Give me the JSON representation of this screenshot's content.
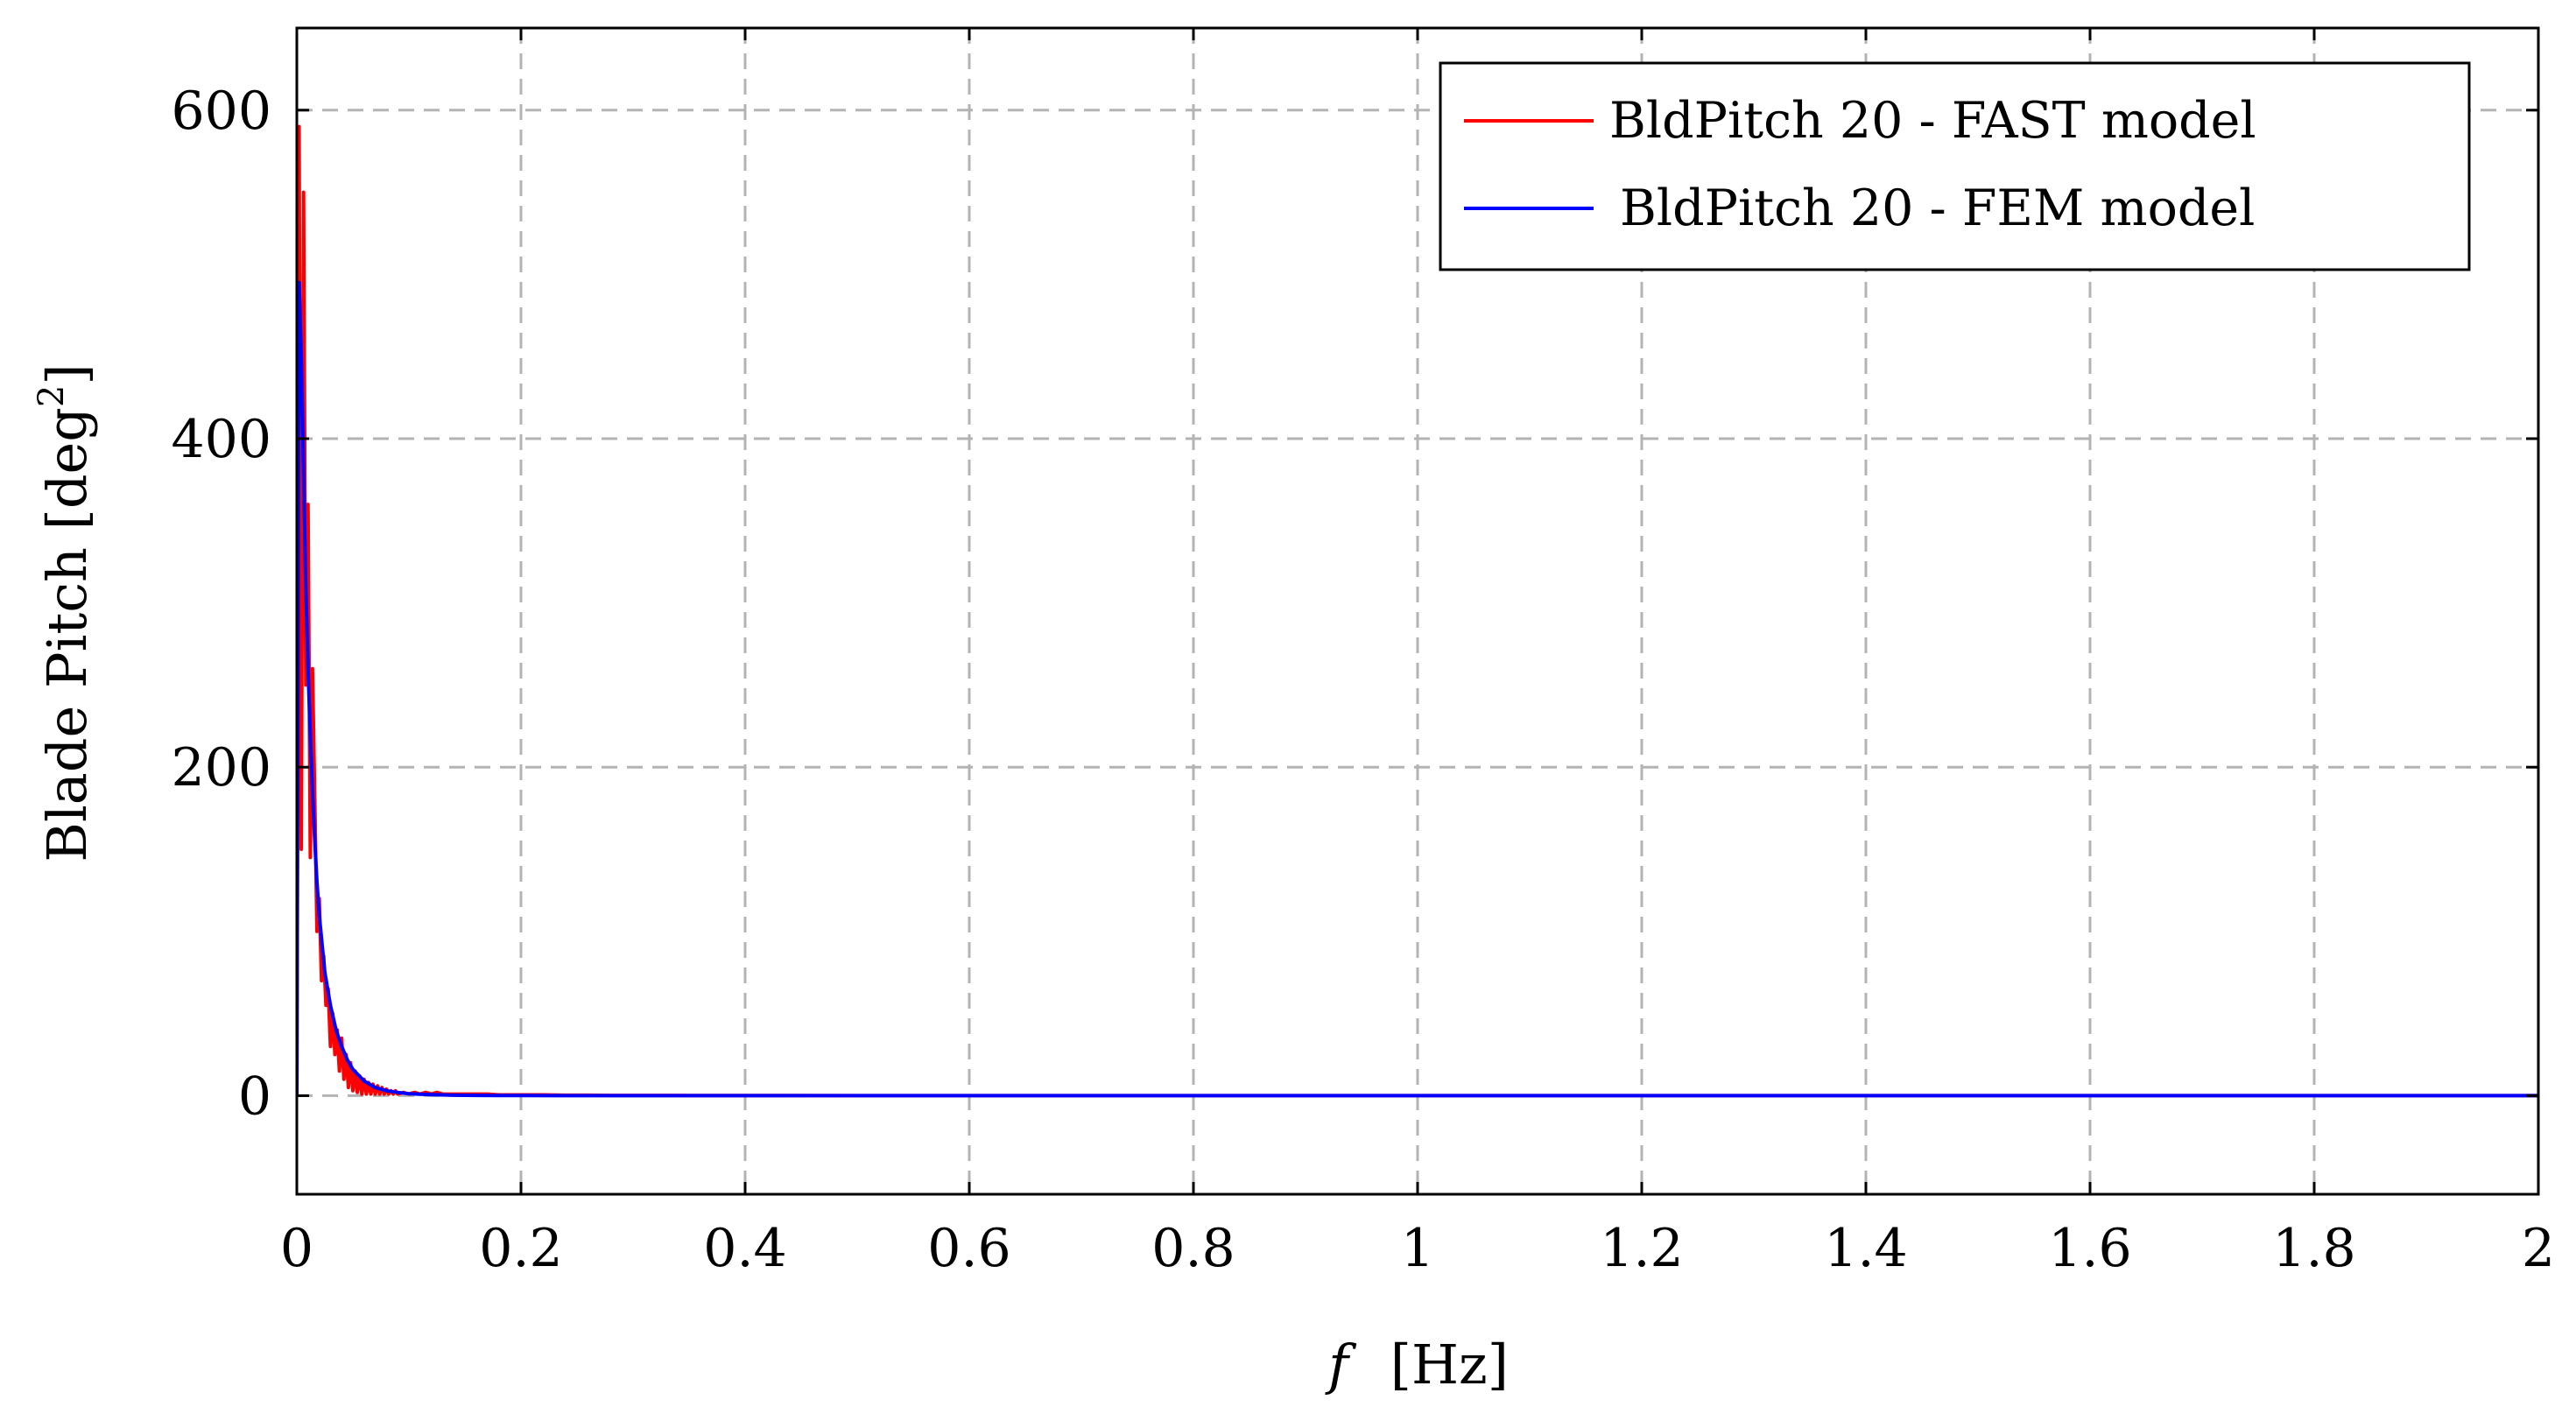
{
  "chart_data": {
    "type": "line",
    "title": "",
    "xlabel": "f [Hz]",
    "xlabel_var": "f",
    "xlabel_unit": "[Hz]",
    "ylabel": "Blade Pitch [deg²]",
    "ylabel_text": "Blade Pitch [deg",
    "ylabel_sup": "2",
    "ylabel_close": "]",
    "xlim": [
      0,
      2
    ],
    "ylim": [
      -60,
      650
    ],
    "xticks": [
      0,
      0.2,
      0.4,
      0.6,
      0.8,
      1,
      1.2,
      1.4,
      1.6,
      1.8,
      2
    ],
    "xtick_labels": [
      "0",
      "0.2",
      "0.4",
      "0.6",
      "0.8",
      "1",
      "1.2",
      "1.4",
      "1.6",
      "1.8",
      "2"
    ],
    "yticks": [
      0,
      200,
      400,
      600
    ],
    "ytick_labels": [
      "0",
      "200",
      "400",
      "600"
    ],
    "grid": true,
    "grid_style": "dashed",
    "legend_position": "top-right",
    "series": [
      {
        "name": "BldPitch 20 - FAST model",
        "color": "#ff0000",
        "x": [
          0,
          0.002,
          0.004,
          0.006,
          0.008,
          0.01,
          0.012,
          0.014,
          0.016,
          0.018,
          0.02,
          0.022,
          0.024,
          0.026,
          0.028,
          0.03,
          0.032,
          0.034,
          0.036,
          0.038,
          0.04,
          0.042,
          0.044,
          0.046,
          0.048,
          0.05,
          0.052,
          0.054,
          0.056,
          0.058,
          0.06,
          0.062,
          0.064,
          0.066,
          0.068,
          0.07,
          0.072,
          0.074,
          0.076,
          0.078,
          0.08,
          0.082,
          0.084,
          0.086,
          0.088,
          0.09,
          0.095,
          0.1,
          0.105,
          0.11,
          0.115,
          0.12,
          0.125,
          0.13,
          0.135,
          0.14,
          0.15,
          0.16,
          0.17,
          0.18,
          0.19,
          0.2,
          0.22,
          0.24,
          0.26,
          0.28,
          0.3,
          0.35,
          0.4,
          0.5,
          0.6,
          0.8,
          1.0,
          1.2,
          1.4,
          1.6,
          1.8,
          2.0
        ],
        "values": [
          0,
          590,
          150,
          550,
          250,
          360,
          145,
          260,
          180,
          100,
          120,
          70,
          85,
          55,
          65,
          30,
          50,
          25,
          40,
          15,
          35,
          10,
          25,
          5,
          20,
          3,
          15,
          2,
          12,
          1,
          10,
          1,
          8,
          1,
          7,
          1,
          6,
          1,
          5,
          1,
          4,
          1,
          3,
          1,
          3,
          1,
          2,
          1,
          2,
          1,
          2,
          1,
          2,
          1,
          1,
          1,
          1,
          1,
          1,
          0.5,
          0.5,
          0.5,
          0.5,
          0.3,
          0.3,
          0.2,
          0.2,
          0.1,
          0.1,
          0,
          0,
          0,
          0,
          0,
          0,
          0,
          0,
          0
        ]
      },
      {
        "name": "BldPitch 20 - FEM model",
        "color": "#0000ff",
        "x": [
          0,
          0.002,
          0.004,
          0.006,
          0.008,
          0.01,
          0.012,
          0.014,
          0.016,
          0.018,
          0.02,
          0.025,
          0.03,
          0.035,
          0.04,
          0.045,
          0.05,
          0.06,
          0.07,
          0.08,
          0.09,
          0.1,
          0.12,
          0.14,
          0.16,
          0.18,
          0.2,
          0.25,
          0.3,
          0.4,
          0.6,
          0.8,
          1.0,
          1.2,
          1.4,
          1.6,
          1.8,
          2.0
        ],
        "values": [
          0,
          495,
          450,
          380,
          310,
          260,
          220,
          185,
          155,
          130,
          110,
          75,
          55,
          40,
          30,
          22,
          16,
          9,
          5,
          3,
          2,
          1.2,
          0.6,
          0.3,
          0.2,
          0.1,
          0.1,
          0,
          0,
          0,
          0,
          0,
          0,
          0,
          0,
          0,
          0,
          0
        ]
      }
    ]
  }
}
